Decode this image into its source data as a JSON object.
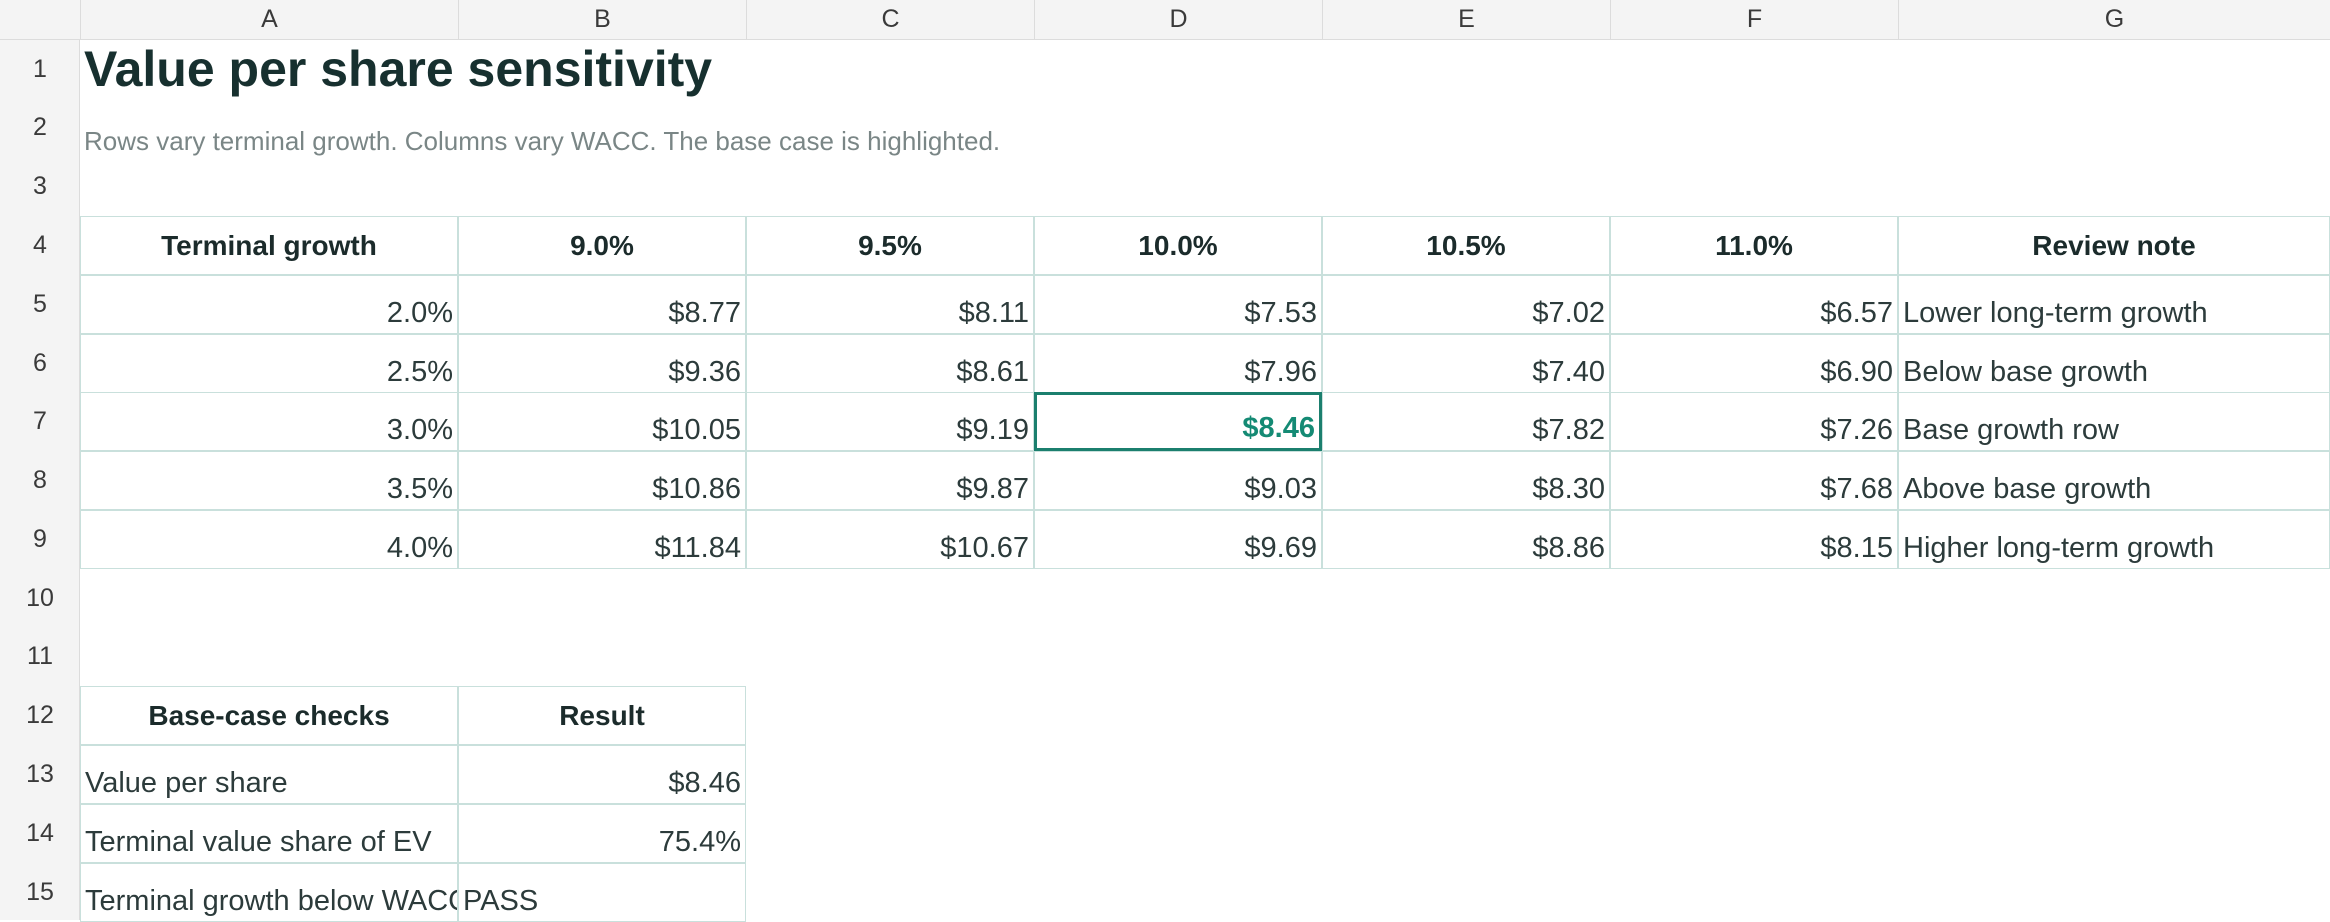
{
  "columns": [
    "A",
    "B",
    "C",
    "D",
    "E",
    "F",
    "G"
  ],
  "rows": [
    "1",
    "2",
    "3",
    "4",
    "5",
    "6",
    "7",
    "8",
    "9",
    "10",
    "11",
    "12",
    "13",
    "14",
    "15"
  ],
  "title": "Value per share sensitivity",
  "subtitle": "Rows vary terminal growth. Columns vary WACC. The base case is highlighted.",
  "sensitivity": {
    "headers": [
      "Terminal growth",
      "9.0%",
      "9.5%",
      "10.0%",
      "10.5%",
      "11.0%",
      "Review note"
    ],
    "rows": [
      [
        "2.0%",
        "$8.77",
        "$8.11",
        "$7.53",
        "$7.02",
        "$6.57",
        "Lower long-term growth"
      ],
      [
        "2.5%",
        "$9.36",
        "$8.61",
        "$7.96",
        "$7.40",
        "$6.90",
        "Below base growth"
      ],
      [
        "3.0%",
        "$10.05",
        "$9.19",
        "$8.46",
        "$7.82",
        "$7.26",
        "Base growth row"
      ],
      [
        "3.5%",
        "$10.86",
        "$9.87",
        "$9.03",
        "$8.30",
        "$7.68",
        "Above base growth"
      ],
      [
        "4.0%",
        "$11.84",
        "$10.67",
        "$9.69",
        "$8.86",
        "$8.15",
        "Higher long-term growth"
      ]
    ],
    "highlight": {
      "row": 2,
      "col": 3
    }
  },
  "checks": {
    "headers": [
      "Base-case checks",
      "Result"
    ],
    "rows": [
      [
        "Value per share",
        "$8.46"
      ],
      [
        "Terminal value share of EV",
        "75.4%"
      ],
      [
        "Terminal growth below WACC",
        "PASS"
      ]
    ]
  },
  "colors": {
    "accent": "#1b7f6e",
    "highlight_text": "#148a74",
    "grid": "#c9e0dc"
  }
}
